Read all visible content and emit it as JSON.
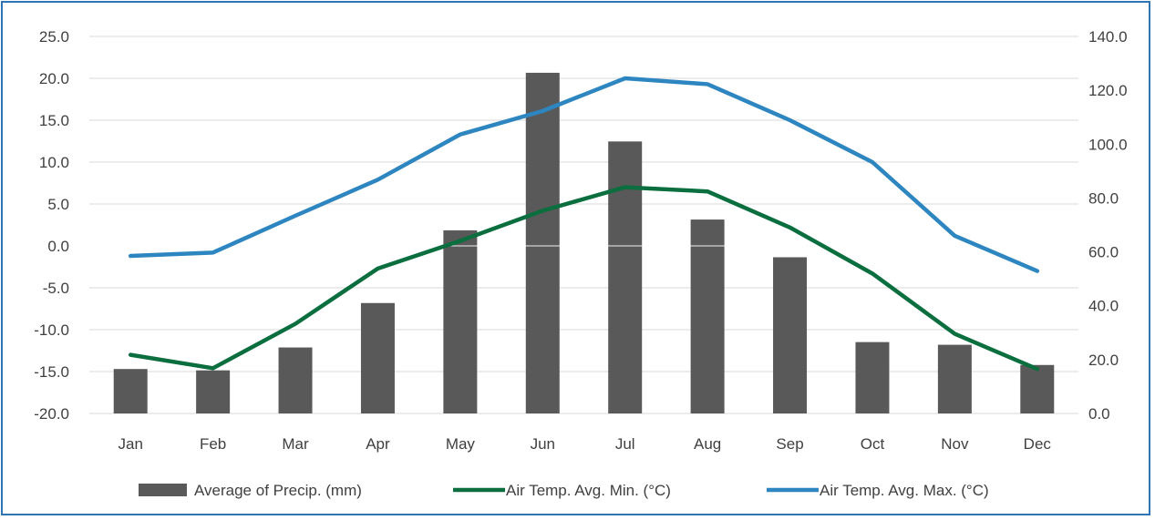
{
  "chart_data": {
    "type": "bar",
    "title": "",
    "categories": [
      "Jan",
      "Feb",
      "Mar",
      "Apr",
      "May",
      "Jun",
      "Jul",
      "Aug",
      "Sep",
      "Oct",
      "Nov",
      "Dec"
    ],
    "y_left": {
      "min": -20,
      "max": 25,
      "step": 5,
      "tick_labels": [
        "-20.0",
        "-15.0",
        "-10.0",
        "-5.0",
        "0.0",
        "5.0",
        "10.0",
        "15.0",
        "20.0",
        "25.0"
      ]
    },
    "y_right": {
      "min": 0,
      "max": 140,
      "step": 20,
      "tick_labels": [
        "0.0",
        "20.0",
        "40.0",
        "60.0",
        "80.0",
        "100.0",
        "120.0",
        "140.0"
      ]
    },
    "grid": true,
    "legend_position": "bottom",
    "series": [
      {
        "name": "Average of Precip. (mm)",
        "kind": "bar",
        "axis": "right",
        "color": "#595959",
        "values": [
          16.5,
          16.0,
          24.5,
          41.0,
          68.0,
          126.5,
          101.0,
          72.0,
          58.0,
          26.5,
          25.5,
          18.0
        ]
      },
      {
        "name": "Air Temp. Avg. Min. (°C)",
        "kind": "line",
        "axis": "left",
        "color": "#0b6e3f",
        "values": [
          -13.0,
          -14.6,
          -9.3,
          -2.7,
          0.6,
          4.2,
          7.0,
          6.5,
          2.2,
          -3.3,
          -10.5,
          -14.7
        ]
      },
      {
        "name": "Air Temp. Avg. Max. (°C)",
        "kind": "line",
        "axis": "left",
        "color": "#2e86c1",
        "values": [
          -1.2,
          -0.8,
          3.6,
          7.9,
          13.3,
          16.1,
          20.0,
          19.3,
          15.0,
          10.0,
          1.2,
          -3.0
        ]
      }
    ]
  }
}
